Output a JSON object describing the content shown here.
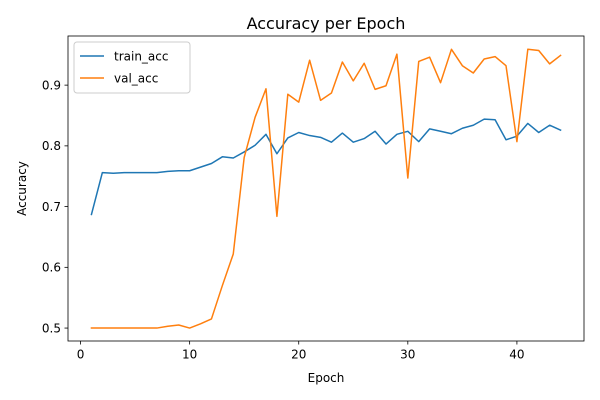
{
  "chart_data": {
    "type": "line",
    "title": "Accuracy per Epoch",
    "xlabel": "Epoch",
    "ylabel": "Accuracy",
    "xlim": [
      -1.15,
      46.15
    ],
    "ylim": [
      0.4787,
      0.9809
    ],
    "xticks": [
      0,
      10,
      20,
      30,
      40
    ],
    "yticks": [
      0.5,
      0.6,
      0.7,
      0.8,
      0.9
    ],
    "ytick_labels": [
      "0.5",
      "0.6",
      "0.7",
      "0.8",
      "0.9"
    ],
    "grid": false,
    "legend": "top-left",
    "x": [
      1,
      2,
      3,
      4,
      5,
      6,
      7,
      8,
      9,
      10,
      11,
      12,
      13,
      14,
      15,
      16,
      17,
      18,
      19,
      20,
      21,
      22,
      23,
      24,
      25,
      26,
      27,
      28,
      29,
      30,
      31,
      32,
      33,
      34,
      35,
      36,
      37,
      38,
      39,
      40,
      41,
      42,
      43,
      44
    ],
    "series": [
      {
        "name": "train_acc",
        "color": "#1f77b4",
        "values": [
          0.687,
          0.756,
          0.755,
          0.756,
          0.756,
          0.756,
          0.756,
          0.758,
          0.759,
          0.759,
          0.765,
          0.771,
          0.782,
          0.78,
          0.79,
          0.801,
          0.819,
          0.787,
          0.813,
          0.822,
          0.817,
          0.814,
          0.806,
          0.821,
          0.806,
          0.812,
          0.824,
          0.803,
          0.819,
          0.824,
          0.807,
          0.828,
          0.824,
          0.82,
          0.829,
          0.834,
          0.844,
          0.843,
          0.81,
          0.816,
          0.837,
          0.822,
          0.834,
          0.826
        ]
      },
      {
        "name": "val_acc",
        "color": "#ff7f0e",
        "values": [
          0.5,
          0.5,
          0.5,
          0.5,
          0.5,
          0.5,
          0.5,
          0.503,
          0.505,
          0.5,
          0.507,
          0.515,
          0.57,
          0.622,
          0.781,
          0.847,
          0.894,
          0.684,
          0.885,
          0.872,
          0.941,
          0.875,
          0.887,
          0.938,
          0.907,
          0.936,
          0.893,
          0.899,
          0.951,
          0.747,
          0.939,
          0.946,
          0.904,
          0.959,
          0.932,
          0.92,
          0.943,
          0.947,
          0.932,
          0.807,
          0.959,
          0.957,
          0.935,
          0.949
        ]
      }
    ]
  }
}
